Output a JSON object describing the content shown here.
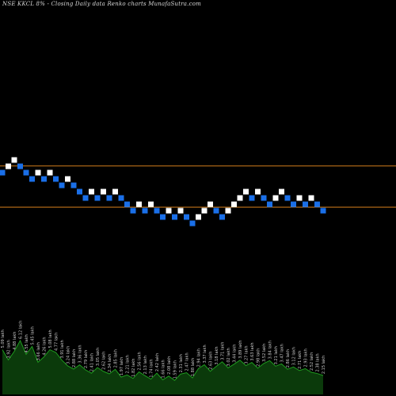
{
  "title": "NSE KKCL 8% -  Closing Daily data  Renko  charts MunafaSutra.com",
  "colors": {
    "background": "#000000",
    "up_brick": "#ffffff",
    "down_brick": "#1a6fe8",
    "level_line": "#c8781a",
    "volume_fill": "#0b3a0b",
    "volume_top": "#1f9a1f",
    "label": "#c8c8c8"
  },
  "chart_data": {
    "type": "renko",
    "title": "NSE KKCL 8% -  Closing Daily data  Renko  charts MunafaSutra.com",
    "bricks": [
      {
        "level": 0,
        "dir": "down"
      },
      {
        "level": 1,
        "dir": "up"
      },
      {
        "level": 2,
        "dir": "up"
      },
      {
        "level": 1,
        "dir": "down"
      },
      {
        "level": 0,
        "dir": "down"
      },
      {
        "level": -1,
        "dir": "down"
      },
      {
        "level": 0,
        "dir": "up"
      },
      {
        "level": -1,
        "dir": "down"
      },
      {
        "level": 0,
        "dir": "up"
      },
      {
        "level": -1,
        "dir": "down"
      },
      {
        "level": -2,
        "dir": "down"
      },
      {
        "level": -1,
        "dir": "up"
      },
      {
        "level": -2,
        "dir": "down"
      },
      {
        "level": -3,
        "dir": "down"
      },
      {
        "level": -4,
        "dir": "down"
      },
      {
        "level": -3,
        "dir": "up"
      },
      {
        "level": -4,
        "dir": "down"
      },
      {
        "level": -3,
        "dir": "up"
      },
      {
        "level": -4,
        "dir": "down"
      },
      {
        "level": -3,
        "dir": "up"
      },
      {
        "level": -4,
        "dir": "down"
      },
      {
        "level": -5,
        "dir": "down"
      },
      {
        "level": -6,
        "dir": "down"
      },
      {
        "level": -5,
        "dir": "up"
      },
      {
        "level": -6,
        "dir": "down"
      },
      {
        "level": -5,
        "dir": "up"
      },
      {
        "level": -6,
        "dir": "down"
      },
      {
        "level": -7,
        "dir": "down"
      },
      {
        "level": -6,
        "dir": "up"
      },
      {
        "level": -7,
        "dir": "down"
      },
      {
        "level": -6,
        "dir": "up"
      },
      {
        "level": -7,
        "dir": "down"
      },
      {
        "level": -8,
        "dir": "down"
      },
      {
        "level": -7,
        "dir": "up"
      },
      {
        "level": -6,
        "dir": "up"
      },
      {
        "level": -5,
        "dir": "up"
      },
      {
        "level": -6,
        "dir": "down"
      },
      {
        "level": -7,
        "dir": "down"
      },
      {
        "level": -6,
        "dir": "up"
      },
      {
        "level": -5,
        "dir": "up"
      },
      {
        "level": -4,
        "dir": "up"
      },
      {
        "level": -3,
        "dir": "up"
      },
      {
        "level": -4,
        "dir": "down"
      },
      {
        "level": -3,
        "dir": "up"
      },
      {
        "level": -4,
        "dir": "down"
      },
      {
        "level": -5,
        "dir": "down"
      },
      {
        "level": -4,
        "dir": "up"
      },
      {
        "level": -3,
        "dir": "up"
      },
      {
        "level": -4,
        "dir": "down"
      },
      {
        "level": -5,
        "dir": "down"
      },
      {
        "level": -4,
        "dir": "up"
      },
      {
        "level": -5,
        "dir": "down"
      },
      {
        "level": -4,
        "dir": "up"
      },
      {
        "level": -5,
        "dir": "down"
      },
      {
        "level": -6,
        "dir": "down"
      }
    ],
    "reference_levels": [
      1,
      -5.5
    ],
    "volume": [
      {
        "label": "5.09 lakh",
        "value": 5.09
      },
      {
        "label": "3.92 lakh",
        "value": 3.92
      },
      {
        "label": "4.88 lakh",
        "value": 4.88
      },
      {
        "label": "6.12 lakh",
        "value": 6.12
      },
      {
        "label": "4.55 lakh",
        "value": 4.55
      },
      {
        "label": "5.45 lakh",
        "value": 5.45
      },
      {
        "label": "3.66 lakh",
        "value": 3.66
      },
      {
        "label": "4.26 lakh",
        "value": 4.26
      },
      {
        "label": "5.08 lakh",
        "value": 5.08
      },
      {
        "label": "4.77 lakh",
        "value": 4.77
      },
      {
        "label": "3.91 lakh",
        "value": 3.91
      },
      {
        "label": "3.24 lakh",
        "value": 3.24
      },
      {
        "label": "2.88 lakh",
        "value": 2.88
      },
      {
        "label": "3.36 lakh",
        "value": 3.36
      },
      {
        "label": "2.79 lakh",
        "value": 2.79
      },
      {
        "label": "2.41 lakh",
        "value": 2.41
      },
      {
        "label": "3.05 lakh",
        "value": 3.05
      },
      {
        "label": "2.62 lakh",
        "value": 2.62
      },
      {
        "label": "2.34 lakh",
        "value": 2.34
      },
      {
        "label": "2.85 lakh",
        "value": 2.85
      },
      {
        "label": "1.97 lakh",
        "value": 1.97
      },
      {
        "label": "2.21 lakh",
        "value": 2.21
      },
      {
        "label": "1.82 lakh",
        "value": 1.82
      },
      {
        "label": "2.56 lakh",
        "value": 2.56
      },
      {
        "label": "2.13 lakh",
        "value": 2.13
      },
      {
        "label": "1.74 lakh",
        "value": 1.74
      },
      {
        "label": "2.42 lakh",
        "value": 2.42
      },
      {
        "label": "1.66 lakh",
        "value": 1.66
      },
      {
        "label": "2.08 lakh",
        "value": 2.08
      },
      {
        "label": "1.59 lakh",
        "value": 1.59
      },
      {
        "label": "2.31 lakh",
        "value": 2.31
      },
      {
        "label": "2.47 lakh",
        "value": 2.47
      },
      {
        "label": "1.88 lakh",
        "value": 1.88
      },
      {
        "label": "2.94 lakh",
        "value": 2.94
      },
      {
        "label": "3.37 lakh",
        "value": 3.37
      },
      {
        "label": "2.63 lakh",
        "value": 2.63
      },
      {
        "label": "3.18 lakh",
        "value": 3.18
      },
      {
        "label": "3.71 lakh",
        "value": 3.71
      },
      {
        "label": "3.02 lakh",
        "value": 3.02
      },
      {
        "label": "3.44 lakh",
        "value": 3.44
      },
      {
        "label": "3.89 lakh",
        "value": 3.89
      },
      {
        "label": "3.27 lakh",
        "value": 3.27
      },
      {
        "label": "3.63 lakh",
        "value": 3.63
      },
      {
        "label": "2.98 lakh",
        "value": 2.98
      },
      {
        "label": "3.52 lakh",
        "value": 3.52
      },
      {
        "label": "3.84 lakh",
        "value": 3.84
      },
      {
        "label": "3.21 lakh",
        "value": 3.21
      },
      {
        "label": "3.47 lakh",
        "value": 3.47
      },
      {
        "label": "2.86 lakh",
        "value": 2.86
      },
      {
        "label": "3.12 lakh",
        "value": 3.12
      },
      {
        "label": "2.71 lakh",
        "value": 2.71
      },
      {
        "label": "2.93 lakh",
        "value": 2.93
      },
      {
        "label": "2.52 lakh",
        "value": 2.52
      },
      {
        "label": "2.38 lakh",
        "value": 2.38
      },
      {
        "label": "2.15 lakh",
        "value": 2.15
      }
    ]
  }
}
